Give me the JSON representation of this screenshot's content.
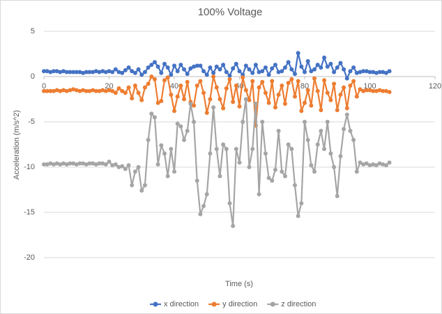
{
  "chart_data": {
    "type": "scatter-line",
    "title": "100% Voltage",
    "xlabel": "Time (s)",
    "ylabel": "Acceleration (m/s^2)",
    "x": [
      0,
      1,
      2,
      3,
      4,
      5,
      6,
      7,
      8,
      9,
      10,
      11,
      12,
      13,
      14,
      15,
      16,
      17,
      18,
      19,
      20,
      21,
      22,
      23,
      24,
      25,
      26,
      27,
      28,
      29,
      30,
      31,
      32,
      33,
      34,
      35,
      36,
      37,
      38,
      39,
      40,
      41,
      42,
      43,
      44,
      45,
      46,
      47,
      48,
      49,
      50,
      51,
      52,
      53,
      54,
      55,
      56,
      57,
      58,
      59,
      60,
      61,
      62,
      63,
      64,
      65,
      66,
      67,
      68,
      69,
      70,
      71,
      72,
      73,
      74,
      75,
      76,
      77,
      78,
      79,
      80,
      81,
      82,
      83,
      84,
      85,
      86,
      87,
      88,
      89,
      90,
      91,
      92,
      93,
      94,
      95,
      96,
      97,
      98,
      99,
      100,
      101,
      102,
      103,
      104,
      105,
      106
    ],
    "series": [
      {
        "name": "x direction",
        "color": "#4472c4",
        "values": [
          0.6,
          0.6,
          0.5,
          0.6,
          0.6,
          0.5,
          0.6,
          0.5,
          0.5,
          0.5,
          0.5,
          0.5,
          0.4,
          0.5,
          0.5,
          0.5,
          0.6,
          0.5,
          0.6,
          0.5,
          0.6,
          0.5,
          0.8,
          0.5,
          0.4,
          0.7,
          1.0,
          0.6,
          0.4,
          0.8,
          0.2,
          0.5,
          1.0,
          1.3,
          1.6,
          1.1,
          0.4,
          1.4,
          1.0,
          0.2,
          1.2,
          0.6,
          1.3,
          0.8,
          0.3,
          0.9,
          1.1,
          1.2,
          1.2,
          0.6,
          0.2,
          1.0,
          0.4,
          1.1,
          0.8,
          1.3,
          0.5,
          0.1,
          0.9,
          1.4,
          0.6,
          0.2,
          1.2,
          0.8,
          0.4,
          1.3,
          0.5,
          0.6,
          1.0,
          0.2,
          0.9,
          1.3,
          0.5,
          0.6,
          1.0,
          1.6,
          0.8,
          0.3,
          2.6,
          1.1,
          0.5,
          1.7,
          0.6,
          0.8,
          1.3,
          1.0,
          2.1,
          1.1,
          1.4,
          0.5,
          1.0,
          1.5,
          0.8,
          -0.2,
          0.6,
          1.0,
          0.4,
          0.5,
          0.6,
          0.6,
          0.5,
          0.5,
          0.4,
          0.5,
          0.5,
          0.4,
          0.6
        ]
      },
      {
        "name": "y direction",
        "color": "#ed7d31",
        "values": [
          -1.6,
          -1.6,
          -1.6,
          -1.6,
          -1.5,
          -1.6,
          -1.5,
          -1.6,
          -1.5,
          -1.4,
          -1.5,
          -1.6,
          -1.5,
          -1.6,
          -1.6,
          -1.5,
          -1.6,
          -1.6,
          -1.5,
          -1.6,
          -1.5,
          -1.6,
          -1.8,
          -1.3,
          -1.6,
          -1.8,
          -1.2,
          -2.4,
          -1.0,
          -1.8,
          -2.6,
          -1.2,
          -0.8,
          0.0,
          -0.3,
          -2.9,
          -2.7,
          -0.4,
          -0.1,
          -2.0,
          -3.8,
          -2.2,
          -1.0,
          -2.5,
          -0.6,
          -2.8,
          -3.2,
          -1.0,
          -0.5,
          -1.8,
          -4.0,
          -2.5,
          0.0,
          -1.2,
          -2.5,
          -3.5,
          -1.3,
          -0.3,
          -2.8,
          -1.0,
          -3.3,
          -0.1,
          -1.5,
          -2.6,
          -0.5,
          -5.4,
          -1.2,
          -0.6,
          -1.8,
          -2.9,
          -0.5,
          -3.4,
          -2.0,
          -1.0,
          -3.0,
          -0.7,
          -0.3,
          -2.2,
          -0.5,
          -3.8,
          -2.9,
          -1.5,
          -3.2,
          -0.2,
          -1.6,
          -3.7,
          -0.4,
          -1.8,
          -2.6,
          -0.8,
          -3.7,
          -2.0,
          -1.2,
          -3.5,
          -1.0,
          -0.5,
          -2.2,
          -1.4,
          -1.6,
          -1.5,
          -1.5,
          -1.6,
          -1.6,
          -1.5,
          -1.6,
          -1.6,
          -1.7
        ]
      },
      {
        "name": "z direction",
        "color": "#a5a5a5",
        "values": [
          -9.7,
          -9.7,
          -9.6,
          -9.7,
          -9.6,
          -9.7,
          -9.6,
          -9.7,
          -9.6,
          -9.6,
          -9.7,
          -9.6,
          -9.6,
          -9.7,
          -9.6,
          -9.6,
          -9.7,
          -9.6,
          -9.6,
          -9.7,
          -9.4,
          -9.8,
          -9.7,
          -10.0,
          -9.9,
          -10.2,
          -9.8,
          -12.0,
          -10.5,
          -10.0,
          -12.6,
          -12.0,
          -7.0,
          -4.1,
          -4.5,
          -9.7,
          -7.6,
          -8.5,
          -11.0,
          -8.0,
          -10.5,
          -5.2,
          -5.5,
          -7.0,
          -6.0,
          -3.0,
          -5.0,
          -11.5,
          -15.2,
          -14.3,
          -13.0,
          -8.5,
          -3.4,
          -8.0,
          -11.0,
          -7.5,
          -8.0,
          -14.0,
          -16.5,
          -8.0,
          -9.5,
          -5.0,
          -2.5,
          -10.0,
          -8.0,
          -3.0,
          -13.0,
          -5.0,
          -8.5,
          -11.2,
          -11.5,
          -10.3,
          -6.0,
          -10.5,
          -11.0,
          -7.5,
          -8.0,
          -12.0,
          -15.4,
          -14.0,
          -5.0,
          -7.0,
          -9.8,
          -10.5,
          -7.5,
          -6.0,
          -8.0,
          -5.0,
          -8.5,
          -10.0,
          -13.2,
          -8.8,
          -5.8,
          -4.2,
          -6.0,
          -7.0,
          -10.5,
          -9.5,
          -9.7,
          -9.6,
          -9.8,
          -9.7,
          -9.8,
          -9.6,
          -9.7,
          -9.8,
          -9.5
        ]
      }
    ],
    "xlim": [
      0,
      120
    ],
    "xticks": [
      0,
      20,
      40,
      60,
      80,
      100,
      120
    ],
    "ylim": [
      -20,
      5
    ],
    "yticks": [
      -20,
      -15,
      -10,
      -5,
      0,
      5
    ],
    "grid": true,
    "legend": "bottom"
  }
}
